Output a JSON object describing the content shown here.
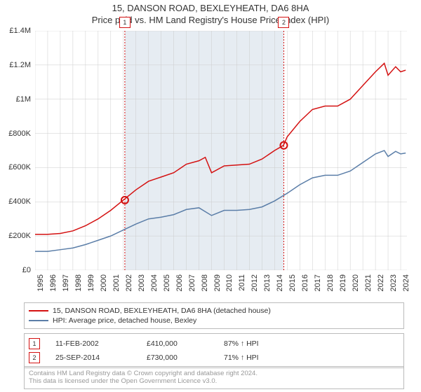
{
  "title_line1": "15, DANSON ROAD, BEXLEYHEATH, DA6 8HA",
  "title_line2": "Price paid vs. HM Land Registry's House Price Index (HPI)",
  "chart": {
    "type": "line",
    "x_years": [
      1995,
      1996,
      1997,
      1998,
      1999,
      2000,
      2001,
      2002,
      2003,
      2004,
      2005,
      2006,
      2007,
      2008,
      2009,
      2010,
      2011,
      2012,
      2013,
      2014,
      2015,
      2016,
      2017,
      2018,
      2019,
      2020,
      2021,
      2022,
      2023,
      2024
    ],
    "ylim_min": 0,
    "ylim_max": 1400000,
    "ytick_step": 200000,
    "y_tick_labels": [
      "£0",
      "£200K",
      "£400K",
      "£600K",
      "£800K",
      "£1M",
      "£1.2M",
      "£1.4M"
    ],
    "shade_start_year": 2002.12,
    "shade_end_year": 2014.73,
    "shade_color": "#e6ecf2",
    "background_color": "#ffffff",
    "grid_color": "#cccccc",
    "series": [
      {
        "name": "price_paid",
        "label": "15, DANSON ROAD, BEXLEYHEATH, DA6 8HA (detached house)",
        "color": "#d41111",
        "points": [
          [
            1995,
            210000
          ],
          [
            1996,
            210000
          ],
          [
            1997,
            215000
          ],
          [
            1998,
            230000
          ],
          [
            1999,
            260000
          ],
          [
            2000,
            300000
          ],
          [
            2001,
            350000
          ],
          [
            2002,
            410000
          ],
          [
            2003,
            470000
          ],
          [
            2004,
            520000
          ],
          [
            2005,
            545000
          ],
          [
            2006,
            570000
          ],
          [
            2007,
            620000
          ],
          [
            2008,
            640000
          ],
          [
            2008.5,
            660000
          ],
          [
            2009,
            570000
          ],
          [
            2010,
            610000
          ],
          [
            2011,
            615000
          ],
          [
            2012,
            620000
          ],
          [
            2013,
            650000
          ],
          [
            2014,
            700000
          ],
          [
            2014.7,
            730000
          ],
          [
            2015,
            780000
          ],
          [
            2016,
            870000
          ],
          [
            2017,
            940000
          ],
          [
            2018,
            960000
          ],
          [
            2019,
            960000
          ],
          [
            2020,
            1000000
          ],
          [
            2021,
            1080000
          ],
          [
            2022,
            1160000
          ],
          [
            2022.7,
            1210000
          ],
          [
            2023,
            1140000
          ],
          [
            2023.6,
            1190000
          ],
          [
            2024,
            1160000
          ],
          [
            2024.4,
            1170000
          ]
        ]
      },
      {
        "name": "hpi",
        "label": "HPI: Average price, detached house, Bexley",
        "color": "#5b7ea8",
        "points": [
          [
            1995,
            110000
          ],
          [
            1996,
            110000
          ],
          [
            1997,
            120000
          ],
          [
            1998,
            130000
          ],
          [
            1999,
            150000
          ],
          [
            2000,
            175000
          ],
          [
            2001,
            200000
          ],
          [
            2002,
            235000
          ],
          [
            2003,
            270000
          ],
          [
            2004,
            300000
          ],
          [
            2005,
            310000
          ],
          [
            2006,
            325000
          ],
          [
            2007,
            355000
          ],
          [
            2008,
            365000
          ],
          [
            2009,
            320000
          ],
          [
            2010,
            350000
          ],
          [
            2011,
            350000
          ],
          [
            2012,
            355000
          ],
          [
            2013,
            370000
          ],
          [
            2014,
            405000
          ],
          [
            2015,
            450000
          ],
          [
            2016,
            500000
          ],
          [
            2017,
            540000
          ],
          [
            2018,
            555000
          ],
          [
            2019,
            555000
          ],
          [
            2020,
            580000
          ],
          [
            2021,
            630000
          ],
          [
            2022,
            680000
          ],
          [
            2022.7,
            700000
          ],
          [
            2023,
            665000
          ],
          [
            2023.6,
            695000
          ],
          [
            2024,
            680000
          ],
          [
            2024.4,
            685000
          ]
        ]
      }
    ],
    "transactions": [
      {
        "n": 1,
        "year": 2002.12,
        "date_label": "11-FEB-2002",
        "price": 410000,
        "price_label": "£410,000",
        "hpi_label": "87% ↑ HPI",
        "color": "#d41111"
      },
      {
        "n": 2,
        "year": 2014.73,
        "date_label": "25-SEP-2014",
        "price": 730000,
        "price_label": "£730,000",
        "hpi_label": "71% ↑ HPI",
        "color": "#d41111"
      }
    ]
  },
  "footnote_line1": "Contains HM Land Registry data © Crown copyright and database right 2024.",
  "footnote_line2": "This data is licensed under the Open Government Licence v3.0."
}
